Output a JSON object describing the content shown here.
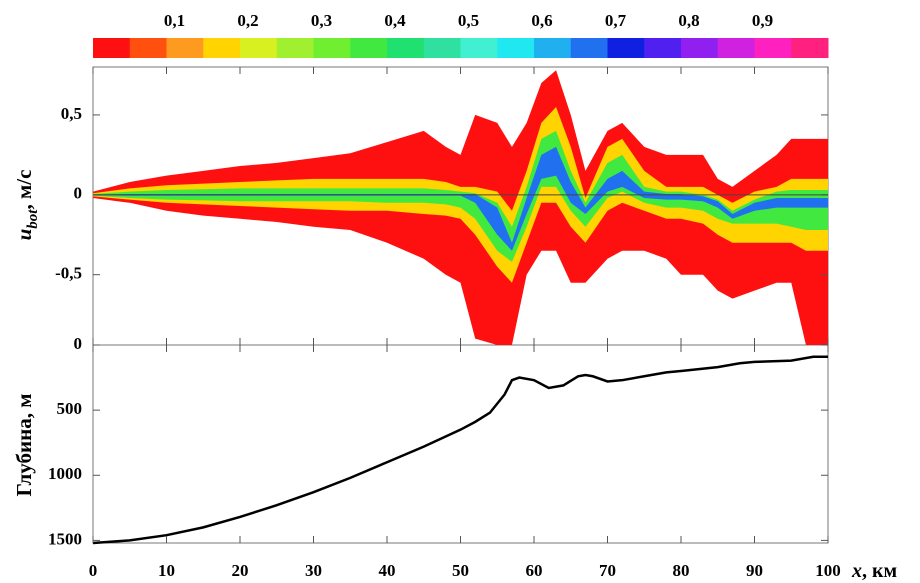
{
  "chart_data": [
    {
      "type": "area-bands",
      "ylabel": [
        "u",
        "bot",
        ", м/с"
      ],
      "colorbar": {
        "range": [
          0,
          1
        ],
        "colors": [
          "#ff1010",
          "#ff5010",
          "#ff9a20",
          "#ffd400",
          "#d8f020",
          "#a0f030",
          "#70ee30",
          "#40e840",
          "#20e070",
          "#30e0a0",
          "#40f0d0",
          "#20e8f0",
          "#20b0f0",
          "#2070f0",
          "#1020e0",
          "#5020f0",
          "#9020f0",
          "#d020e0",
          "#ff20c0",
          "#ff2080"
        ],
        "ticks": [
          {
            "value": 0.1,
            "label": "0,1"
          },
          {
            "value": 0.2,
            "label": "0,2"
          },
          {
            "value": 0.3,
            "label": "0,3"
          },
          {
            "value": 0.4,
            "label": "0,4"
          },
          {
            "value": 0.5,
            "label": "0,5"
          },
          {
            "value": 0.6,
            "label": "0,6"
          },
          {
            "value": 0.7,
            "label": "0,7"
          },
          {
            "value": 0.8,
            "label": "0,8"
          },
          {
            "value": 0.9,
            "label": "0,9"
          }
        ]
      },
      "ylim": [
        -0.94,
        0.8
      ],
      "yticks": [
        {
          "value": -0.5,
          "label": "-0,5"
        },
        0,
        {
          "value": 0.5,
          "label": "0,5"
        }
      ],
      "x": [
        0,
        5,
        10,
        15,
        20,
        25,
        30,
        35,
        40,
        45,
        48,
        50,
        52,
        55,
        57,
        59,
        61,
        63,
        65,
        67,
        70,
        72,
        75,
        78,
        80,
        83,
        85,
        87,
        90,
        93,
        95,
        97,
        100
      ],
      "bands": [
        {
          "color": "#ff1010",
          "upper": [
            0.02,
            0.08,
            0.12,
            0.15,
            0.18,
            0.2,
            0.23,
            0.26,
            0.33,
            0.4,
            0.3,
            0.25,
            0.5,
            0.45,
            0.3,
            0.45,
            0.7,
            0.78,
            0.5,
            0.15,
            0.4,
            0.45,
            0.3,
            0.25,
            0.25,
            0.25,
            0.1,
            0.05,
            0.15,
            0.25,
            0.35,
            0.35,
            0.35
          ],
          "lower": [
            -0.02,
            -0.05,
            -0.1,
            -0.13,
            -0.15,
            -0.17,
            -0.2,
            -0.22,
            -0.3,
            -0.4,
            -0.5,
            -0.55,
            -0.9,
            -0.94,
            -0.94,
            -0.5,
            -0.35,
            -0.35,
            -0.55,
            -0.55,
            -0.4,
            -0.35,
            -0.35,
            -0.4,
            -0.5,
            -0.5,
            -0.6,
            -0.65,
            -0.6,
            -0.55,
            -0.55,
            -0.94,
            -0.94
          ]
        },
        {
          "color": "#ffd400",
          "upper": [
            0.01,
            0.04,
            0.06,
            0.07,
            0.08,
            0.09,
            0.1,
            0.1,
            0.1,
            0.1,
            0.08,
            0.05,
            0.05,
            0.02,
            -0.1,
            0.15,
            0.45,
            0.55,
            0.3,
            -0.02,
            0.3,
            0.35,
            0.15,
            0.05,
            0.05,
            0.05,
            0,
            -0.05,
            0.02,
            0.05,
            0.1,
            0.1,
            0.1
          ],
          "lower": [
            -0.01,
            -0.03,
            -0.05,
            -0.06,
            -0.07,
            -0.08,
            -0.09,
            -0.1,
            -0.1,
            -0.12,
            -0.13,
            -0.15,
            -0.25,
            -0.45,
            -0.55,
            -0.3,
            -0.05,
            -0.05,
            -0.2,
            -0.3,
            -0.1,
            -0.05,
            -0.1,
            -0.15,
            -0.15,
            -0.18,
            -0.25,
            -0.3,
            -0.3,
            -0.3,
            -0.3,
            -0.35,
            -0.35
          ]
        },
        {
          "color": "#40e840",
          "upper": [
            0.005,
            0.02,
            0.03,
            0.035,
            0.04,
            0.04,
            0.04,
            0.04,
            0.04,
            0.04,
            0.03,
            0.02,
            0.01,
            -0.05,
            -0.2,
            0.05,
            0.35,
            0.4,
            0.15,
            -0.05,
            0.2,
            0.25,
            0.05,
            0.02,
            0.02,
            0,
            -0.03,
            -0.1,
            -0.03,
            0.02,
            0.03,
            0.03,
            0.03
          ],
          "lower": [
            -0.005,
            -0.02,
            -0.03,
            -0.035,
            -0.04,
            -0.04,
            -0.04,
            -0.04,
            -0.05,
            -0.05,
            -0.06,
            -0.08,
            -0.15,
            -0.35,
            -0.42,
            -0.2,
            0.05,
            0.05,
            -0.1,
            -0.2,
            -0.02,
            0.02,
            -0.05,
            -0.08,
            -0.08,
            -0.1,
            -0.15,
            -0.18,
            -0.18,
            -0.18,
            -0.2,
            -0.22,
            -0.22
          ]
        },
        {
          "color": "#2070f0",
          "upper": [
            0.002,
            0.005,
            0.005,
            0.005,
            0.005,
            0.005,
            0.005,
            0.005,
            0.005,
            0.005,
            0.005,
            0.005,
            0.005,
            -0.08,
            -0.3,
            -0.02,
            0.25,
            0.3,
            0.08,
            -0.08,
            0.1,
            0.15,
            0.02,
            0.005,
            0.005,
            -0.01,
            -0.04,
            -0.12,
            -0.05,
            -0.02,
            -0.02,
            -0.02,
            -0.02
          ],
          "lower": [
            -0.002,
            -0.005,
            -0.005,
            -0.005,
            -0.005,
            -0.005,
            -0.005,
            -0.005,
            -0.005,
            -0.005,
            -0.005,
            -0.005,
            -0.05,
            -0.25,
            -0.35,
            -0.12,
            0.1,
            0.12,
            -0.05,
            -0.12,
            0.02,
            0.05,
            -0.02,
            -0.03,
            -0.03,
            -0.04,
            -0.08,
            -0.15,
            -0.1,
            -0.08,
            -0.08,
            -0.08,
            -0.08
          ]
        }
      ]
    },
    {
      "type": "line",
      "ylabel": "Глубина, м",
      "xlabel": [
        "x",
        ", км"
      ],
      "x": [
        0,
        5,
        10,
        15,
        20,
        25,
        30,
        35,
        40,
        45,
        50,
        52,
        54,
        56,
        57,
        58,
        60,
        62,
        64,
        66,
        67,
        68,
        70,
        72,
        75,
        78,
        80,
        85,
        88,
        90,
        95,
        98,
        100
      ],
      "values": [
        1520,
        1500,
        1460,
        1400,
        1320,
        1230,
        1130,
        1020,
        900,
        780,
        650,
        590,
        520,
        380,
        270,
        250,
        270,
        330,
        310,
        240,
        230,
        240,
        280,
        270,
        240,
        210,
        200,
        170,
        140,
        130,
        120,
        90,
        90
      ],
      "color": "#000000",
      "xlim": [
        0,
        100
      ],
      "xticks": [
        0,
        10,
        20,
        30,
        40,
        50,
        60,
        70,
        80,
        90,
        100
      ],
      "ylim": [
        0,
        1520
      ],
      "inverted_y": true,
      "yticks": [
        0,
        500,
        1000,
        1500
      ]
    }
  ]
}
